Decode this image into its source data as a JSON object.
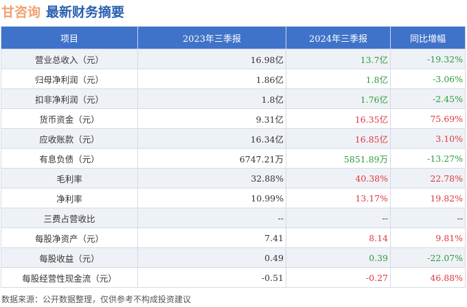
{
  "header": {
    "company": "甘咨询",
    "subtitle": "最新财务摘要"
  },
  "table": {
    "columns": [
      "项目",
      "2023年三季报",
      "2024年三季报",
      "同比增幅"
    ],
    "rows": [
      {
        "item": "营业总收入（元）",
        "y2023": "16.98亿",
        "y2024": "13.7亿",
        "change": "-19.32%",
        "c24": "g",
        "cc": "g"
      },
      {
        "item": "归母净利润（元）",
        "y2023": "1.86亿",
        "y2024": "1.8亿",
        "change": "-3.06%",
        "c24": "g",
        "cc": "g"
      },
      {
        "item": "扣非净利润（元）",
        "y2023": "1.8亿",
        "y2024": "1.76亿",
        "change": "-2.45%",
        "c24": "g",
        "cc": "g"
      },
      {
        "item": "货币资金（元）",
        "y2023": "9.31亿",
        "y2024": "16.35亿",
        "change": "75.69%",
        "c24": "r",
        "cc": "r"
      },
      {
        "item": "应收账款（元）",
        "y2023": "16.34亿",
        "y2024": "16.85亿",
        "change": "3.10%",
        "c24": "r",
        "cc": "r"
      },
      {
        "item": "有息负债（元）",
        "y2023": "6747.21万",
        "y2024": "5851.89万",
        "change": "-13.27%",
        "c24": "g",
        "cc": "g"
      },
      {
        "item": "毛利率",
        "y2023": "32.88%",
        "y2024": "40.38%",
        "change": "22.78%",
        "c24": "r",
        "cc": "r"
      },
      {
        "item": "净利率",
        "y2023": "10.99%",
        "y2024": "13.17%",
        "change": "19.82%",
        "c24": "r",
        "cc": "r"
      },
      {
        "item": "三费占营收比",
        "y2023": "--",
        "y2024": "--",
        "change": "--",
        "c24": "n",
        "cc": "n"
      },
      {
        "item": "每股净资产（元）",
        "y2023": "7.41",
        "y2024": "8.14",
        "change": "9.81%",
        "c24": "r",
        "cc": "r"
      },
      {
        "item": "每股收益（元）",
        "y2023": "0.49",
        "y2024": "0.39",
        "change": "-22.07%",
        "c24": "g",
        "cc": "g"
      },
      {
        "item": "每股经营性现金流（元）",
        "y2023": "-0.51",
        "y2024": "-0.27",
        "change": "46.88%",
        "c24": "r",
        "cc": "r"
      }
    ]
  },
  "colors": {
    "header_bg": "#3f73c9",
    "up": "#e0363b",
    "down": "#2f9a3a"
  },
  "footer": "数据来源：公开数据整理，仅供参考不构成投资建议"
}
